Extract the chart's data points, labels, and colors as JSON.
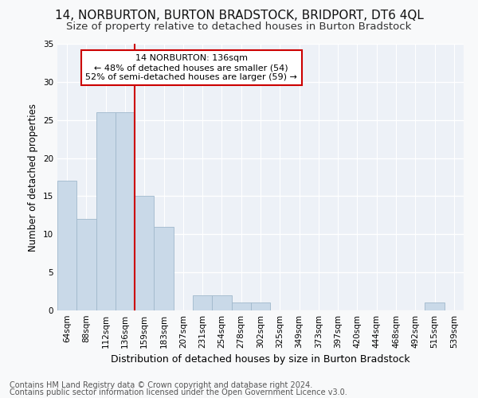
{
  "title": "14, NORBURTON, BURTON BRADSTOCK, BRIDPORT, DT6 4QL",
  "subtitle": "Size of property relative to detached houses in Burton Bradstock",
  "xlabel": "Distribution of detached houses by size in Burton Bradstock",
  "ylabel": "Number of detached properties",
  "bar_labels": [
    "64sqm",
    "88sqm",
    "112sqm",
    "136sqm",
    "159sqm",
    "183sqm",
    "207sqm",
    "231sqm",
    "254sqm",
    "278sqm",
    "302sqm",
    "325sqm",
    "349sqm",
    "373sqm",
    "397sqm",
    "420sqm",
    "444sqm",
    "468sqm",
    "492sqm",
    "515sqm",
    "539sqm"
  ],
  "bar_values": [
    17,
    12,
    26,
    26,
    15,
    11,
    0,
    2,
    2,
    1,
    1,
    0,
    0,
    0,
    0,
    0,
    0,
    0,
    0,
    1,
    0
  ],
  "bar_color": "#c9d9e8",
  "bar_edgecolor": "#a0b8cc",
  "vline_index": 3,
  "vline_color": "#cc0000",
  "annotation_text": "14 NORBURTON: 136sqm\n← 48% of detached houses are smaller (54)\n52% of semi-detached houses are larger (59) →",
  "annotation_box_edgecolor": "#cc0000",
  "ylim": [
    0,
    35
  ],
  "yticks": [
    0,
    5,
    10,
    15,
    20,
    25,
    30,
    35
  ],
  "footer1": "Contains HM Land Registry data © Crown copyright and database right 2024.",
  "footer2": "Contains public sector information licensed under the Open Government Licence v3.0.",
  "fig_bg_color": "#f8f9fa",
  "axes_bg_color": "#edf1f7",
  "grid_color": "#ffffff",
  "title_fontsize": 11,
  "subtitle_fontsize": 9.5,
  "ylabel_fontsize": 8.5,
  "xlabel_fontsize": 9,
  "tick_fontsize": 7.5,
  "annotation_fontsize": 8,
  "footer_fontsize": 7
}
